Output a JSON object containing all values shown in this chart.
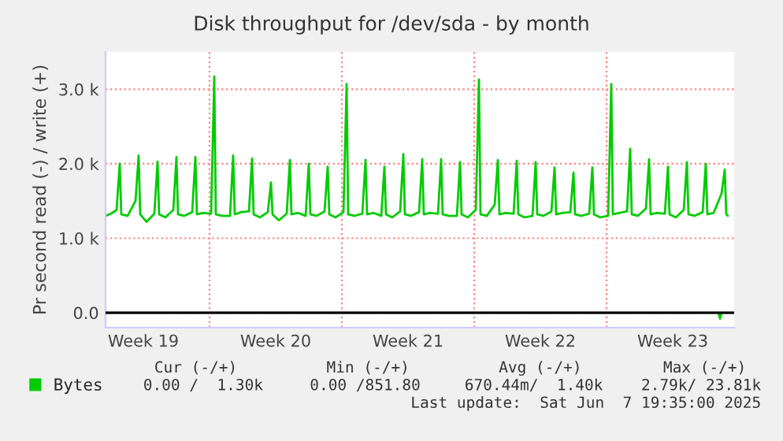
{
  "chart_data": {
    "type": "line",
    "title": "Disk throughput for /dev/sda - by month",
    "ylabel": "Pr second read (-) / write (+)",
    "xlim": [
      "2025-05-06T12:00",
      "2025-06-08T18:00"
    ],
    "xticks": [
      {
        "value": "2025-05-08T12:00",
        "label": "Week 19"
      },
      {
        "value": "2025-05-15T12:00",
        "label": "Week 20"
      },
      {
        "value": "2025-05-22T12:00",
        "label": "Week 21"
      },
      {
        "value": "2025-05-29T12:00",
        "label": "Week 22"
      },
      {
        "value": "2025-06-05T12:00",
        "label": "Week 23"
      }
    ],
    "ylim": [
      -200,
      3500
    ],
    "yticks": [
      {
        "value": 0,
        "label": "0.0"
      },
      {
        "value": 1000,
        "label": "1.0 k"
      },
      {
        "value": 2000,
        "label": "2.0 k"
      },
      {
        "value": 3000,
        "label": "3.0 k"
      }
    ],
    "grid": "y",
    "legend": "bottom",
    "ref_lines": [
      {
        "axis": "y",
        "value": 0,
        "color": "#000000",
        "line_style": "solid"
      },
      {
        "axis": "x",
        "value": "2025-05-12",
        "color": "#ff8080",
        "line_style": "dotted"
      },
      {
        "axis": "x",
        "value": "2025-05-19",
        "color": "#ff8080",
        "line_style": "dotted"
      },
      {
        "axis": "x",
        "value": "2025-05-26",
        "color": "#ff8080",
        "line_style": "dotted"
      },
      {
        "axis": "x",
        "value": "2025-06-02",
        "color": "#ff8080",
        "line_style": "dotted"
      }
    ],
    "series": [
      {
        "name": "Bytes",
        "color": "#00cc00",
        "x": [
          "2025-05-06T12:00",
          "2025-05-06T19:00",
          "2025-05-07T02:00",
          "2025-05-07T06:00",
          "2025-05-07T08:00",
          "2025-05-07T16:00",
          "2025-05-08T02:00",
          "2025-05-08T06:00",
          "2025-05-08T08:00",
          "2025-05-08T16:00",
          "2025-05-09T02:00",
          "2025-05-09T06:00",
          "2025-05-09T08:00",
          "2025-05-09T16:00",
          "2025-05-10T02:00",
          "2025-05-10T06:00",
          "2025-05-10T08:00",
          "2025-05-10T16:00",
          "2025-05-11T02:00",
          "2025-05-11T06:00",
          "2025-05-11T08:00",
          "2025-05-11T16:00",
          "2025-05-12T02:00",
          "2025-05-12T06:00",
          "2025-05-12T08:00",
          "2025-05-12T16:00",
          "2025-05-13T02:00",
          "2025-05-13T06:00",
          "2025-05-13T08:00",
          "2025-05-13T16:00",
          "2025-05-14T02:00",
          "2025-05-14T06:00",
          "2025-05-14T08:00",
          "2025-05-14T16:00",
          "2025-05-15T02:00",
          "2025-05-15T06:00",
          "2025-05-15T08:00",
          "2025-05-15T16:00",
          "2025-05-16T02:00",
          "2025-05-16T06:00",
          "2025-05-16T08:00",
          "2025-05-16T16:00",
          "2025-05-17T02:00",
          "2025-05-17T06:00",
          "2025-05-17T08:00",
          "2025-05-17T16:00",
          "2025-05-18T02:00",
          "2025-05-18T06:00",
          "2025-05-18T08:00",
          "2025-05-18T16:00",
          "2025-05-19T02:00",
          "2025-05-19T06:00",
          "2025-05-19T08:00",
          "2025-05-19T16:00",
          "2025-05-20T02:00",
          "2025-05-20T06:00",
          "2025-05-20T08:00",
          "2025-05-20T16:00",
          "2025-05-21T02:00",
          "2025-05-21T06:00",
          "2025-05-21T08:00",
          "2025-05-21T16:00",
          "2025-05-22T02:00",
          "2025-05-22T06:00",
          "2025-05-22T08:00",
          "2025-05-22T16:00",
          "2025-05-23T02:00",
          "2025-05-23T06:00",
          "2025-05-23T08:00",
          "2025-05-23T16:00",
          "2025-05-24T02:00",
          "2025-05-24T06:00",
          "2025-05-24T08:00",
          "2025-05-24T16:00",
          "2025-05-25T02:00",
          "2025-05-25T06:00",
          "2025-05-25T08:00",
          "2025-05-25T16:00",
          "2025-05-26T02:00",
          "2025-05-26T06:00",
          "2025-05-26T08:00",
          "2025-05-26T16:00",
          "2025-05-27T02:00",
          "2025-05-27T06:00",
          "2025-05-27T08:00",
          "2025-05-27T16:00",
          "2025-05-28T02:00",
          "2025-05-28T06:00",
          "2025-05-28T08:00",
          "2025-05-28T16:00",
          "2025-05-29T02:00",
          "2025-05-29T06:00",
          "2025-05-29T08:00",
          "2025-05-29T16:00",
          "2025-05-30T02:00",
          "2025-05-30T06:00",
          "2025-05-30T08:00",
          "2025-05-30T16:00",
          "2025-05-31T02:00",
          "2025-05-31T06:00",
          "2025-05-31T08:00",
          "2025-05-31T16:00",
          "2025-06-01T02:00",
          "2025-06-01T06:00",
          "2025-06-01T08:00",
          "2025-06-01T16:00",
          "2025-06-02T02:00",
          "2025-06-02T06:00",
          "2025-06-02T08:00",
          "2025-06-02T16:00",
          "2025-06-03T02:00",
          "2025-06-03T06:00",
          "2025-06-03T08:00",
          "2025-06-03T16:00",
          "2025-06-04T02:00",
          "2025-06-04T06:00",
          "2025-06-04T08:00",
          "2025-06-04T16:00",
          "2025-06-05T02:00",
          "2025-06-05T06:00",
          "2025-06-05T08:00",
          "2025-06-05T16:00",
          "2025-06-06T02:00",
          "2025-06-06T06:00",
          "2025-06-06T08:00",
          "2025-06-06T16:00",
          "2025-06-07T02:00",
          "2025-06-07T06:00",
          "2025-06-07T08:00",
          "2025-06-07T16:00",
          "2025-06-08T02:00",
          "2025-06-08T06:00",
          "2025-06-08T08:00",
          "2025-06-08T10:00"
        ],
        "values": [
          1300,
          1330,
          1380,
          2000,
          1320,
          1300,
          1500,
          2110,
          1320,
          1220,
          1330,
          2030,
          1320,
          1280,
          1380,
          2090,
          1320,
          1300,
          1350,
          2090,
          1320,
          1340,
          1330,
          3170,
          1320,
          1300,
          1300,
          2110,
          1320,
          1350,
          1360,
          2070,
          1320,
          1280,
          1350,
          1750,
          1320,
          1240,
          1330,
          2050,
          1320,
          1340,
          1300,
          2000,
          1320,
          1300,
          1360,
          1960,
          1320,
          1280,
          1350,
          3070,
          1320,
          1300,
          1330,
          2050,
          1320,
          1340,
          1300,
          1960,
          1320,
          1280,
          1360,
          2130,
          1320,
          1300,
          1350,
          2060,
          1320,
          1340,
          1330,
          2060,
          1320,
          1300,
          1300,
          2020,
          1320,
          1280,
          1380,
          3130,
          1320,
          1300,
          1450,
          2050,
          1320,
          1340,
          1330,
          2040,
          1320,
          1280,
          1300,
          2020,
          1320,
          1300,
          1360,
          1950,
          1320,
          1340,
          1350,
          1880,
          1320,
          1300,
          1330,
          1950,
          1320,
          1280,
          1300,
          3070,
          1320,
          1340,
          1360,
          2200,
          1320,
          1300,
          1400,
          2060,
          1320,
          1340,
          1330,
          1960,
          1320,
          1280,
          1380,
          2020,
          1320,
          1300,
          1350,
          2000,
          1320,
          1340,
          1600,
          1920,
          1320,
          1300
        ]
      },
      {
        "color": "#00cc00",
        "x": [
          "2025-06-07T22:00",
          "2025-06-08T00:00",
          "2025-06-08T02:00"
        ],
        "values": [
          0,
          -80,
          0
        ]
      }
    ],
    "annotations": [
      "Cur (-/+)",
      "Min (-/+)",
      "Avg (-/+)",
      "Max (-/+)",
      "0.00 /  1.30k",
      "0.00 /851.80",
      "670.44m/  1.40k",
      "2.79k/ 23.81k",
      "Last update:  Sat Jun  7 19:35:00 2025"
    ]
  }
}
